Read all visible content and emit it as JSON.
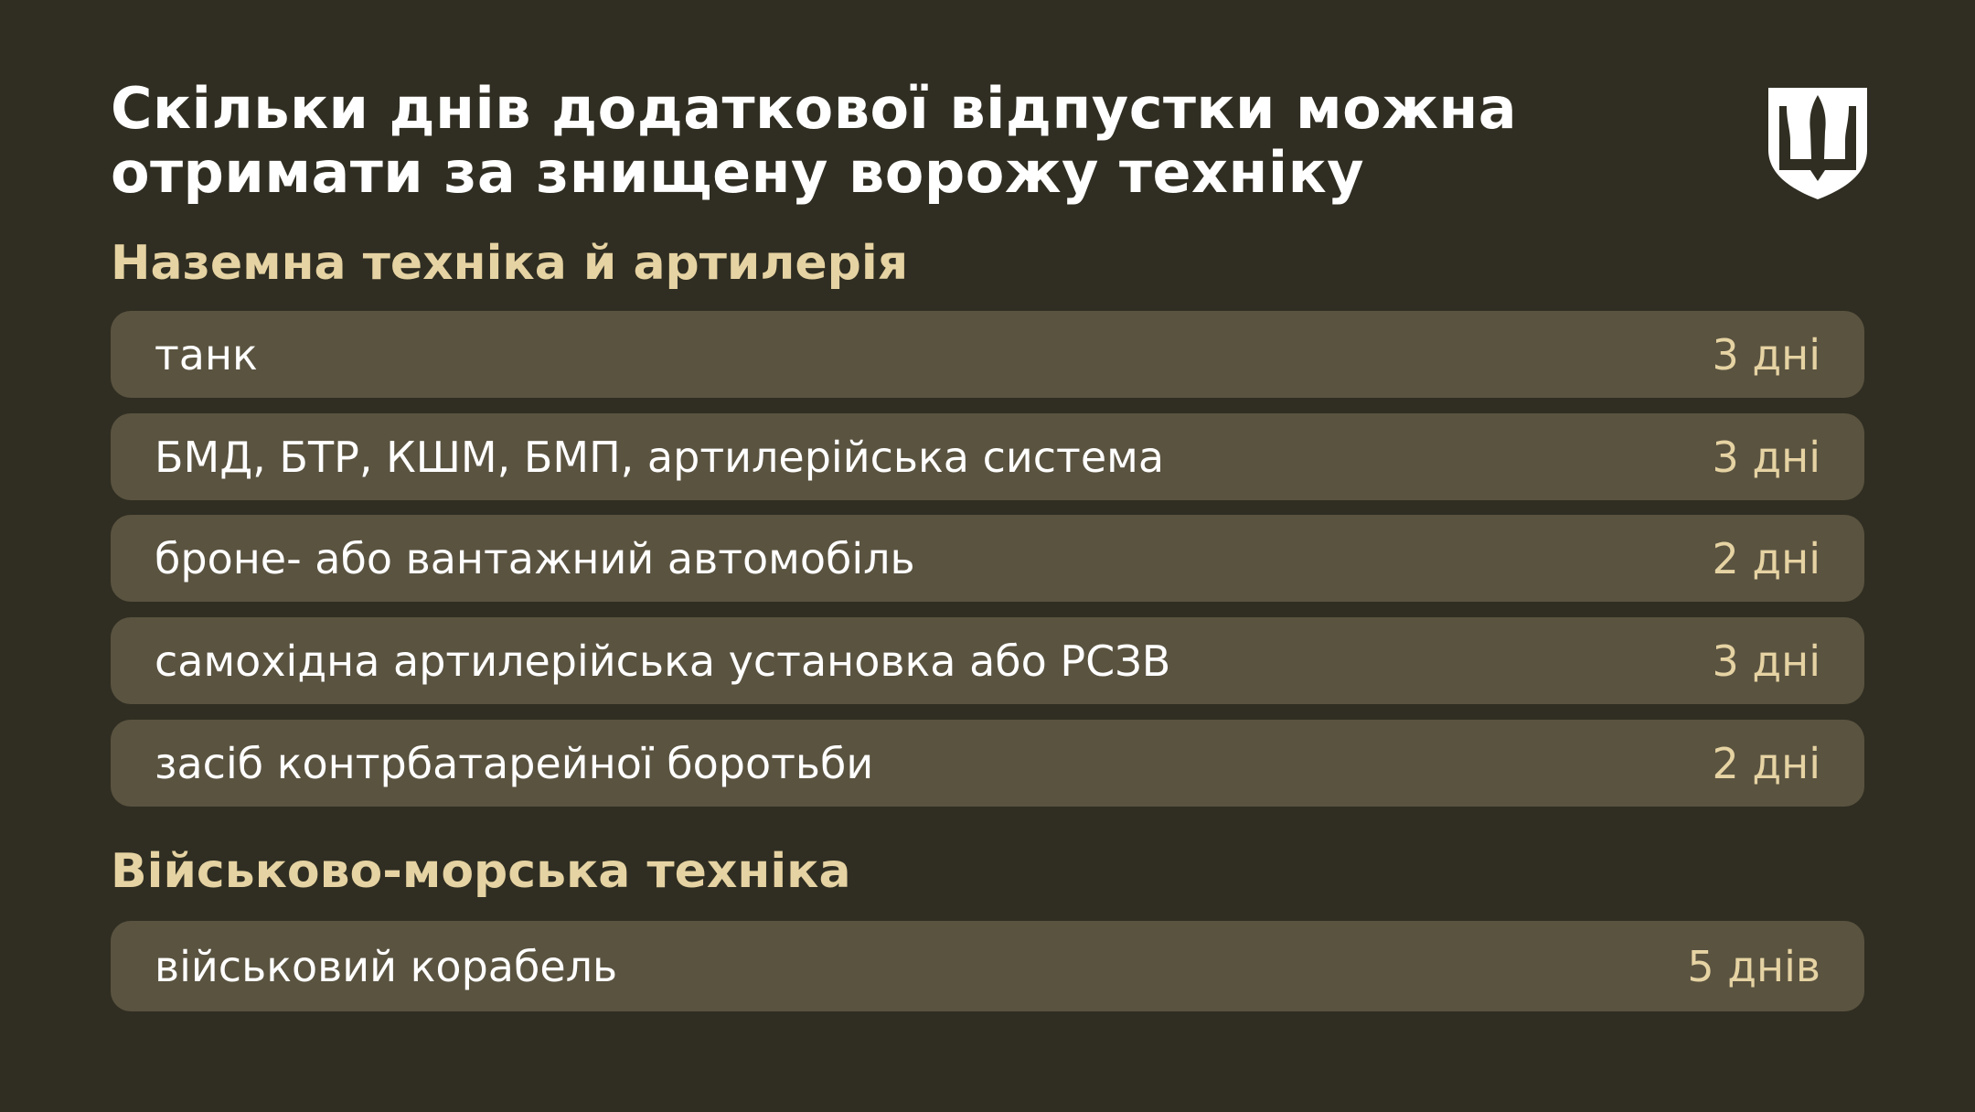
{
  "title_lines": [
    "Скільки днів додаткової відпустки можна",
    "отримати за знищену ворожу техніку"
  ],
  "logo": {
    "icon": "trident-shield-emblem"
  },
  "colors": {
    "background": "#302e22",
    "row": "#5a5340",
    "accent": "#e6d3a3",
    "text": "#ffffff"
  },
  "sections": [
    {
      "heading": "Наземна техніка й артилерія",
      "rows": [
        {
          "label": "танк",
          "value": "3 дні"
        },
        {
          "label": "БМД, БТР, КШМ, БМП, артилерійська система",
          "value": "3 дні"
        },
        {
          "label": "броне- або вантажний автомобіль",
          "value": "2 дні"
        },
        {
          "label": "самохідна артилерійська установка або РСЗВ",
          "value": "3 дні"
        },
        {
          "label": "засіб контрбатарейної боротьби",
          "value": "2 дні"
        }
      ]
    },
    {
      "heading": "Військово-морська техніка",
      "rows": [
        {
          "label": "військовий корабель",
          "value": "5 днів"
        }
      ]
    }
  ]
}
